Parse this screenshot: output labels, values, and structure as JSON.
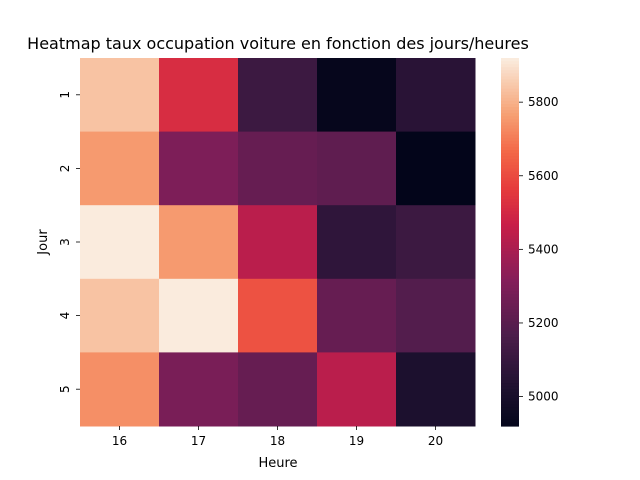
{
  "chart_data": {
    "type": "heatmap",
    "title": "Heatmap taux occupation voiture en fonction des jours/heures",
    "xlabel": "Heure",
    "ylabel": "Jour",
    "x_categories": [
      "16",
      "17",
      "18",
      "19",
      "20"
    ],
    "y_categories": [
      "1",
      "2",
      "3",
      "4",
      "5"
    ],
    "values": [
      [
        5840,
        5520,
        5120,
        4930,
        5060
      ],
      [
        5760,
        5300,
        5240,
        5220,
        4920
      ],
      [
        5920,
        5760,
        5440,
        5080,
        5120
      ],
      [
        5840,
        5920,
        5620,
        5240,
        5190
      ],
      [
        5740,
        5290,
        5240,
        5440,
        5020
      ]
    ],
    "colorbar": {
      "min": 4920,
      "max": 5920,
      "ticks": [
        5000,
        5200,
        5400,
        5600,
        5800
      ],
      "colormap": "rocket"
    }
  }
}
